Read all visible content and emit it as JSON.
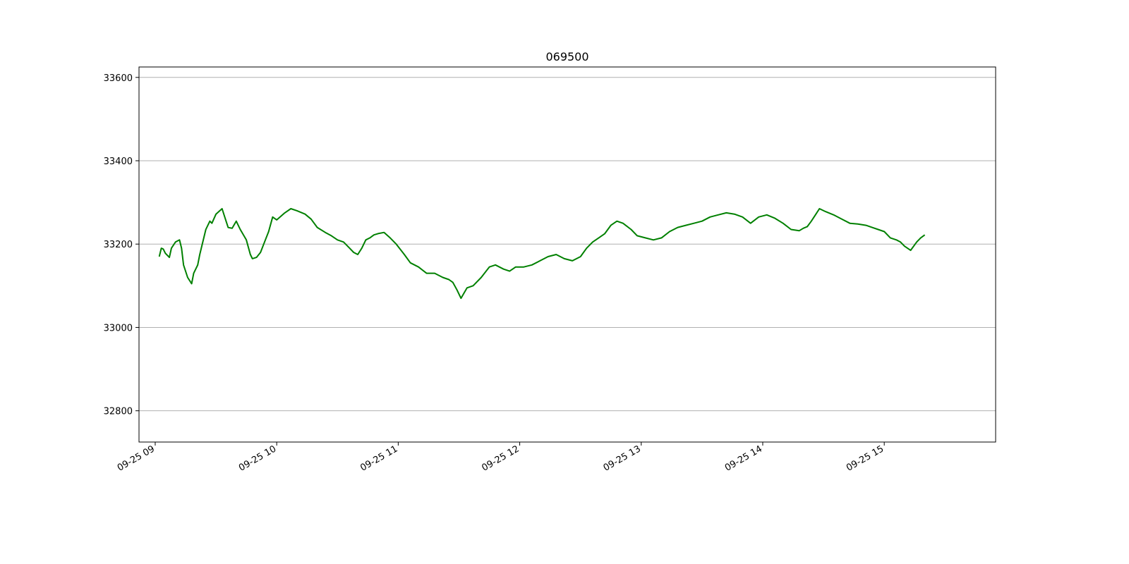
{
  "chart_data": {
    "type": "line",
    "title": "069500",
    "xlabel": "",
    "ylabel": "",
    "x_axis": {
      "kind": "time",
      "range": [
        "09-25 08:52",
        "09-25 15:55"
      ],
      "tick_values": [
        "09:00",
        "10:00",
        "11:00",
        "12:00",
        "13:00",
        "14:00",
        "15:00"
      ],
      "tick_labels": [
        "09-25 09",
        "09-25 10",
        "09-25 11",
        "09-25 12",
        "09-25 13",
        "09-25 14",
        "09-25 15"
      ]
    },
    "y_axis": {
      "range": [
        32725,
        33625
      ],
      "ticks": [
        32800,
        33000,
        33200,
        33400,
        33600
      ],
      "tick_labels": [
        "32800",
        "33000",
        "33200",
        "33400",
        "33600"
      ]
    },
    "grid": "horizontal",
    "legend": "none",
    "colors": {
      "series": "#008000",
      "grid": "#b0b0b0",
      "axes": "#000000"
    },
    "series": [
      {
        "x": [
          "09:02",
          "09:03",
          "09:04",
          "09:05",
          "09:07",
          "09:08",
          "09:10",
          "09:12",
          "09:13",
          "09:14",
          "09:16",
          "09:18",
          "09:19",
          "09:21",
          "09:22",
          "09:25",
          "09:27",
          "09:28",
          "09:30",
          "09:33",
          "09:35",
          "09:36",
          "09:38",
          "09:40",
          "09:42",
          "09:45",
          "09:47",
          "09:48",
          "09:50",
          "09:52",
          "09:54",
          "09:56",
          "09:58",
          "10:00",
          "10:04",
          "10:07",
          "10:10",
          "10:14",
          "10:17",
          "10:20",
          "10:24",
          "10:27",
          "10:30",
          "10:33",
          "10:36",
          "10:38",
          "10:40",
          "10:42",
          "10:44",
          "10:46",
          "10:48",
          "10:50",
          "10:53",
          "10:56",
          "10:59",
          "11:03",
          "11:06",
          "11:10",
          "11:14",
          "11:18",
          "11:22",
          "11:25",
          "11:27",
          "11:29",
          "11:31",
          "11:34",
          "11:37",
          "11:41",
          "11:45",
          "11:48",
          "11:52",
          "11:55",
          "11:58",
          "12:02",
          "12:06",
          "12:10",
          "12:14",
          "12:18",
          "12:22",
          "12:26",
          "12:30",
          "12:33",
          "12:36",
          "12:39",
          "12:42",
          "12:45",
          "12:48",
          "12:51",
          "12:55",
          "12:58",
          "13:02",
          "13:06",
          "13:10",
          "13:14",
          "13:18",
          "13:22",
          "13:26",
          "13:30",
          "13:34",
          "13:38",
          "13:42",
          "13:46",
          "13:50",
          "13:54",
          "13:58",
          "14:02",
          "14:06",
          "14:10",
          "14:14",
          "14:18",
          "14:20",
          "14:22",
          "14:24",
          "14:26",
          "14:28",
          "14:31",
          "14:35",
          "14:39",
          "14:43",
          "14:47",
          "14:51",
          "14:54",
          "14:57",
          "15:00",
          "15:03",
          "15:06",
          "15:08",
          "15:10",
          "15:13",
          "15:16",
          "15:18",
          "15:20"
        ],
        "values": [
          33170,
          33190,
          33188,
          33178,
          33168,
          33190,
          33205,
          33210,
          33190,
          33150,
          33120,
          33105,
          33130,
          33150,
          33175,
          33235,
          33255,
          33250,
          33272,
          33285,
          33255,
          33240,
          33238,
          33255,
          33235,
          33210,
          33175,
          33165,
          33168,
          33180,
          33205,
          33230,
          33265,
          33258,
          33275,
          33285,
          33280,
          33272,
          33260,
          33240,
          33228,
          33220,
          33210,
          33205,
          33190,
          33180,
          33175,
          33190,
          33210,
          33215,
          33222,
          33225,
          33228,
          33215,
          33200,
          33175,
          33155,
          33145,
          33130,
          33130,
          33120,
          33115,
          33108,
          33090,
          33070,
          33095,
          33100,
          33120,
          33145,
          33150,
          33140,
          33135,
          33145,
          33145,
          33150,
          33160,
          33170,
          33175,
          33165,
          33160,
          33170,
          33190,
          33205,
          33215,
          33225,
          33245,
          33255,
          33250,
          33235,
          33220,
          33215,
          33210,
          33215,
          33230,
          33240,
          33245,
          33250,
          33255,
          33265,
          33270,
          33275,
          33272,
          33265,
          33250,
          33265,
          33270,
          33262,
          33250,
          33235,
          33232,
          33238,
          33242,
          33255,
          33270,
          33285,
          33278,
          33270,
          33260,
          33250,
          33248,
          33245,
          33240,
          33235,
          33230,
          33215,
          33210,
          33205,
          33195,
          33185,
          33205,
          33215,
          33222
        ]
      }
    ]
  }
}
